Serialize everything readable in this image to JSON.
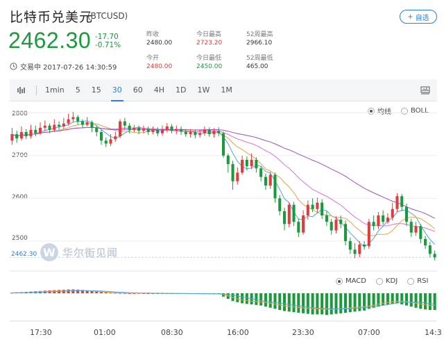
{
  "header": {
    "title": "比特币兑美元",
    "symbol": "(BTCUSD)",
    "watch_label": "自选",
    "price": "2462.30",
    "change": "-17.70",
    "change_pct": "-0.71%"
  },
  "stats": [
    {
      "label": "昨收",
      "value": "2480.00",
      "color": "neutral"
    },
    {
      "label": "今日最高",
      "value": "2723.20",
      "color": "red"
    },
    {
      "label": "52周最高",
      "value": "2966.10",
      "color": "neutral"
    },
    {
      "label": "今开",
      "value": "2480.00",
      "color": "red"
    },
    {
      "label": "今日最低",
      "value": "2450.00",
      "color": "green"
    },
    {
      "label": "52周最低",
      "value": "465.00",
      "color": "neutral"
    }
  ],
  "status": "交易中 2017-07-26 14:30:59",
  "toolbar": {
    "items": [
      "1min",
      "5",
      "15",
      "30",
      "60",
      "4H",
      "1D",
      "1W",
      "1M"
    ],
    "active": "30"
  },
  "overlay_options": [
    {
      "label": "均线",
      "selected": true
    },
    {
      "label": "BOLL",
      "selected": false
    }
  ],
  "indicator_options": [
    {
      "label": "MACD",
      "selected": true
    },
    {
      "label": "KDJ",
      "selected": false
    },
    {
      "label": "RSI",
      "selected": false
    }
  ],
  "watermark": "华尔街见闻",
  "current_price_tag": "2462.30",
  "time_labels": [
    "17:30",
    "01:00",
    "08:30",
    "16:00",
    "23:30",
    "07:00",
    "14:3"
  ],
  "colors": {
    "up": "#e03c3c",
    "down": "#1a9a3c",
    "accent": "#2a7fd4",
    "ma_fast": "#4aa8e0",
    "ma_mid": "#f0a040",
    "ma_slow": "#e070d8",
    "ma_long": "#a050c0"
  },
  "chart_data": {
    "type": "candlestick",
    "y_ticks": [
      2800,
      2700,
      2600,
      2500
    ],
    "ylim": [
      2430,
      2820
    ],
    "x_labels": [
      "17:30",
      "01:00",
      "08:30",
      "16:00",
      "23:30",
      "07:00",
      "14:3"
    ],
    "candles": [
      [
        2735,
        2750,
        2765,
        2725
      ],
      [
        2750,
        2740,
        2758,
        2730
      ],
      [
        2740,
        2755,
        2768,
        2735
      ],
      [
        2755,
        2745,
        2762,
        2738
      ],
      [
        2745,
        2760,
        2772,
        2740
      ],
      [
        2760,
        2752,
        2770,
        2745
      ],
      [
        2752,
        2765,
        2778,
        2748
      ],
      [
        2765,
        2770,
        2782,
        2758
      ],
      [
        2770,
        2760,
        2775,
        2752
      ],
      [
        2760,
        2772,
        2785,
        2755
      ],
      [
        2772,
        2768,
        2780,
        2760
      ],
      [
        2768,
        2775,
        2788,
        2762
      ],
      [
        2775,
        2785,
        2798,
        2770
      ],
      [
        2785,
        2790,
        2802,
        2778
      ],
      [
        2790,
        2780,
        2795,
        2772
      ],
      [
        2780,
        2772,
        2785,
        2765
      ],
      [
        2772,
        2778,
        2790,
        2768
      ],
      [
        2778,
        2765,
        2782,
        2755
      ],
      [
        2765,
        2755,
        2770,
        2745
      ],
      [
        2755,
        2735,
        2760,
        2725
      ],
      [
        2735,
        2728,
        2742,
        2720
      ],
      [
        2728,
        2738,
        2750,
        2722
      ],
      [
        2738,
        2745,
        2756,
        2732
      ],
      [
        2745,
        2780,
        2785,
        2740
      ],
      [
        2780,
        2770,
        2788,
        2762
      ],
      [
        2770,
        2760,
        2776,
        2752
      ],
      [
        2760,
        2765,
        2772,
        2755
      ],
      [
        2765,
        2758,
        2770,
        2750
      ],
      [
        2758,
        2762,
        2770,
        2752
      ],
      [
        2762,
        2755,
        2768,
        2748
      ],
      [
        2755,
        2760,
        2768,
        2750
      ],
      [
        2760,
        2752,
        2766,
        2745
      ],
      [
        2752,
        2760,
        2770,
        2746
      ],
      [
        2760,
        2768,
        2776,
        2754
      ],
      [
        2768,
        2758,
        2774,
        2752
      ],
      [
        2758,
        2762,
        2770,
        2750
      ],
      [
        2762,
        2756,
        2768,
        2748
      ],
      [
        2756,
        2750,
        2762,
        2744
      ],
      [
        2750,
        2755,
        2762,
        2742
      ],
      [
        2755,
        2748,
        2760,
        2740
      ],
      [
        2748,
        2752,
        2760,
        2742
      ],
      [
        2752,
        2760,
        2768,
        2746
      ],
      [
        2760,
        2750,
        2766,
        2744
      ],
      [
        2750,
        2758,
        2764,
        2742
      ],
      [
        2758,
        2752,
        2766,
        2745
      ],
      [
        2752,
        2700,
        2756,
        2695
      ],
      [
        2700,
        2680,
        2705,
        2660
      ],
      [
        2680,
        2640,
        2688,
        2620
      ],
      [
        2640,
        2660,
        2672,
        2632
      ],
      [
        2660,
        2690,
        2700,
        2655
      ],
      [
        2690,
        2675,
        2698,
        2665
      ],
      [
        2675,
        2690,
        2705,
        2668
      ],
      [
        2690,
        2670,
        2696,
        2660
      ],
      [
        2670,
        2650,
        2676,
        2640
      ],
      [
        2650,
        2630,
        2658,
        2620
      ],
      [
        2630,
        2655,
        2662,
        2622
      ],
      [
        2655,
        2600,
        2660,
        2590
      ],
      [
        2600,
        2570,
        2608,
        2560
      ],
      [
        2570,
        2540,
        2578,
        2525
      ],
      [
        2540,
        2585,
        2590,
        2532
      ],
      [
        2585,
        2545,
        2592,
        2535
      ],
      [
        2545,
        2520,
        2552,
        2510
      ],
      [
        2520,
        2560,
        2572,
        2515
      ],
      [
        2560,
        2585,
        2595,
        2550
      ],
      [
        2585,
        2575,
        2600,
        2568
      ],
      [
        2575,
        2590,
        2602,
        2565
      ],
      [
        2590,
        2560,
        2598,
        2552
      ],
      [
        2560,
        2545,
        2570,
        2535
      ],
      [
        2545,
        2525,
        2552,
        2515
      ],
      [
        2525,
        2550,
        2558,
        2518
      ],
      [
        2550,
        2540,
        2560,
        2530
      ],
      [
        2540,
        2500,
        2548,
        2490
      ],
      [
        2500,
        2480,
        2508,
        2470
      ],
      [
        2480,
        2470,
        2495,
        2460
      ],
      [
        2470,
        2492,
        2500,
        2462
      ],
      [
        2492,
        2488,
        2500,
        2480
      ],
      [
        2488,
        2545,
        2552,
        2482
      ],
      [
        2545,
        2535,
        2560,
        2525
      ],
      [
        2535,
        2560,
        2568,
        2528
      ],
      [
        2560,
        2545,
        2572,
        2538
      ],
      [
        2545,
        2555,
        2565,
        2540
      ],
      [
        2555,
        2575,
        2590,
        2548
      ],
      [
        2575,
        2605,
        2612,
        2568
      ],
      [
        2605,
        2580,
        2610,
        2570
      ],
      [
        2580,
        2545,
        2588,
        2535
      ],
      [
        2545,
        2520,
        2552,
        2510
      ],
      [
        2520,
        2535,
        2545,
        2512
      ],
      [
        2535,
        2505,
        2540,
        2495
      ],
      [
        2505,
        2490,
        2512,
        2482
      ],
      [
        2490,
        2470,
        2498,
        2462
      ],
      [
        2470,
        2462,
        2478,
        2455
      ]
    ],
    "macd_hist": [
      0.5,
      0.8,
      1,
      1.2,
      1.5,
      1.8,
      2,
      2.3,
      2.6,
      2.8,
      3,
      3.2,
      3.4,
      3.5,
      3.3,
      3,
      2.6,
      2.2,
      1.8,
      1.3,
      0.9,
      0.6,
      0.4,
      0.3,
      0.2,
      0.1,
      0.1,
      0.2,
      0.1,
      0,
      -0.1,
      -0.2,
      -0.2,
      -0.3,
      -0.3,
      -0.4,
      -0.4,
      -0.5,
      -0.5,
      -0.6,
      -0.6,
      -0.7,
      -0.7,
      -0.8,
      -0.9,
      -3,
      -5,
      -7,
      -8,
      -9,
      -9.5,
      -10,
      -10.5,
      -11,
      -12,
      -13,
      -14,
      -15,
      -16,
      -16.5,
      -17,
      -17.5,
      -18,
      -18.5,
      -19,
      -19,
      -19,
      -19.5,
      -19,
      -18.5,
      -18,
      -17.5,
      -17,
      -16.5,
      -16,
      -15.5,
      -14,
      -13,
      -12,
      -11,
      -10,
      -9.5,
      -9,
      -10,
      -11,
      -12,
      -13,
      -14,
      -14.5,
      -15,
      -15
    ]
  }
}
